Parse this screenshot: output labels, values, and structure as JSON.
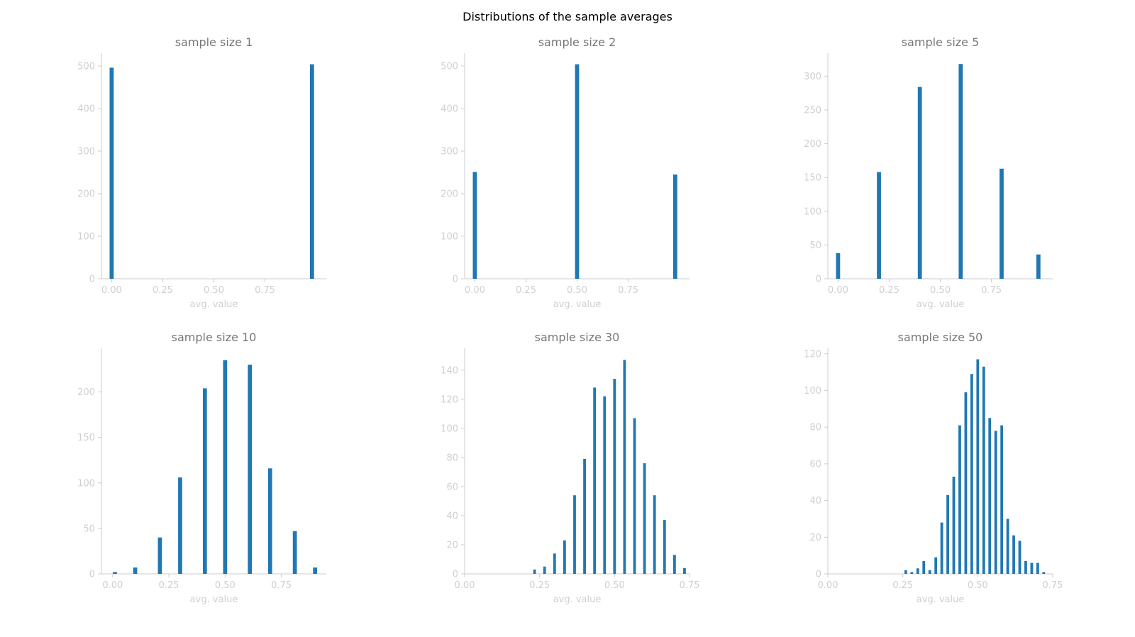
{
  "figure_title": "Distributions of the sample averages",
  "colors": {
    "bar": "#1f77b4",
    "axis": "#cccccc",
    "tick_text": "#cfcfcf",
    "panel_title": "#777777"
  },
  "chart_data": [
    {
      "type": "bar",
      "title": "sample size 1",
      "xlabel": "avg. value",
      "xlim": [
        -0.05,
        1.05
      ],
      "ylim": [
        0,
        530
      ],
      "xticks": [
        0.0,
        0.25,
        0.5,
        0.75
      ],
      "xtick_labels": [
        "0.00",
        "0.25",
        "0.50",
        "0.75"
      ],
      "yticks": [
        0,
        100,
        200,
        300,
        400,
        500
      ],
      "bar_width": 0.02,
      "x": [
        0.0,
        0.98
      ],
      "values": [
        496,
        504
      ]
    },
    {
      "type": "bar",
      "title": "sample size 2",
      "xlabel": "avg. value",
      "xlim": [
        -0.05,
        1.05
      ],
      "ylim": [
        0,
        530
      ],
      "xticks": [
        0.0,
        0.25,
        0.5,
        0.75
      ],
      "xtick_labels": [
        "0.00",
        "0.25",
        "0.50",
        "0.75"
      ],
      "yticks": [
        0,
        100,
        200,
        300,
        400,
        500
      ],
      "bar_width": 0.02,
      "x": [
        0.0,
        0.5,
        0.98
      ],
      "values": [
        251,
        504,
        245
      ]
    },
    {
      "type": "bar",
      "title": "sample size 5",
      "xlabel": "avg. value",
      "xlim": [
        -0.05,
        1.05
      ],
      "ylim": [
        0,
        334
      ],
      "xticks": [
        0.0,
        0.25,
        0.5,
        0.75
      ],
      "xtick_labels": [
        "0.00",
        "0.25",
        "0.50",
        "0.75"
      ],
      "yticks": [
        0,
        50,
        100,
        150,
        200,
        250,
        300
      ],
      "bar_width": 0.02,
      "x": [
        0.0,
        0.2,
        0.4,
        0.6,
        0.8,
        0.98
      ],
      "values": [
        38,
        158,
        284,
        318,
        163,
        36
      ]
    },
    {
      "type": "bar",
      "title": "sample size 10",
      "xlabel": "avg. value",
      "xlim": [
        -0.05,
        0.95
      ],
      "ylim": [
        0,
        248
      ],
      "xticks": [
        0.0,
        0.25,
        0.5,
        0.75
      ],
      "xtick_labels": [
        "0.00",
        "0.25",
        "0.50",
        "0.75"
      ],
      "yticks": [
        0,
        50,
        100,
        150,
        200
      ],
      "bar_width": 0.018,
      "x": [
        0.01,
        0.1,
        0.21,
        0.3,
        0.41,
        0.5,
        0.61,
        0.7,
        0.81,
        0.9
      ],
      "values": [
        2,
        7,
        40,
        106,
        204,
        235,
        230,
        116,
        47,
        7
      ]
    },
    {
      "type": "bar",
      "title": "sample size 30",
      "xlabel": "avg. value",
      "xlim": [
        0.0,
        0.75
      ],
      "ylim": [
        0,
        155
      ],
      "xticks": [
        0.0,
        0.25,
        0.5,
        0.75
      ],
      "xtick_labels": [
        "0.00",
        "0.25",
        "0.50",
        "0.75"
      ],
      "yticks": [
        0,
        20,
        40,
        60,
        80,
        100,
        120,
        140
      ],
      "bar_width": 0.009,
      "x": [
        0.2333,
        0.2667,
        0.3,
        0.3333,
        0.3667,
        0.4,
        0.4333,
        0.4667,
        0.5,
        0.5333,
        0.5667,
        0.6,
        0.6333,
        0.6667,
        0.7,
        0.7333
      ],
      "values": [
        3,
        5,
        14,
        23,
        54,
        79,
        128,
        122,
        134,
        147,
        107,
        76,
        54,
        37,
        13,
        4
      ]
    },
    {
      "type": "bar",
      "title": "sample size 50",
      "xlabel": "avg. value",
      "xlim": [
        0.0,
        0.75
      ],
      "ylim": [
        0,
        123
      ],
      "xticks": [
        0.0,
        0.25,
        0.5,
        0.75
      ],
      "xtick_labels": [
        "0.00",
        "0.25",
        "0.50",
        "0.75"
      ],
      "yticks": [
        0,
        20,
        40,
        60,
        80,
        100,
        120
      ],
      "bar_width": 0.009,
      "x": [
        0.26,
        0.28,
        0.3,
        0.32,
        0.34,
        0.36,
        0.38,
        0.4,
        0.42,
        0.44,
        0.46,
        0.48,
        0.5,
        0.52,
        0.54,
        0.56,
        0.58,
        0.6,
        0.62,
        0.64,
        0.66,
        0.68,
        0.7,
        0.72
      ],
      "values": [
        2,
        1,
        3,
        7,
        2,
        9,
        28,
        43,
        53,
        81,
        99,
        109,
        117,
        113,
        85,
        78,
        81,
        30,
        21,
        18,
        7,
        6,
        6,
        1
      ]
    }
  ]
}
